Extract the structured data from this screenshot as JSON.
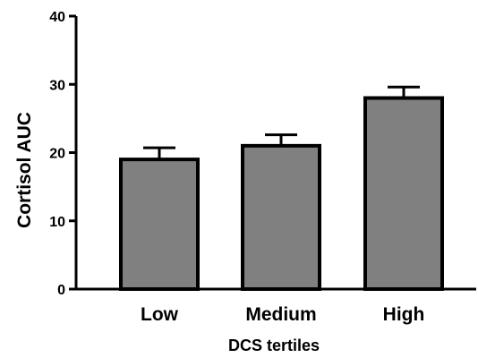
{
  "chart_data": {
    "type": "bar",
    "categories": [
      "Low",
      "Medium",
      "High"
    ],
    "values": [
      19,
      21,
      28
    ],
    "error_upper": [
      20.7,
      22.6,
      29.6
    ],
    "title": "",
    "xlabel": "DCS tertiles",
    "ylabel": "Cortisol  AUC",
    "ylim": [
      0,
      40
    ],
    "yticks": [
      "0",
      "10",
      "20",
      "30",
      "40"
    ],
    "grid": false,
    "legend": "none",
    "colors": {
      "bar_fill": "#808080",
      "bar_stroke": "#000000",
      "axis": "#000000"
    }
  }
}
